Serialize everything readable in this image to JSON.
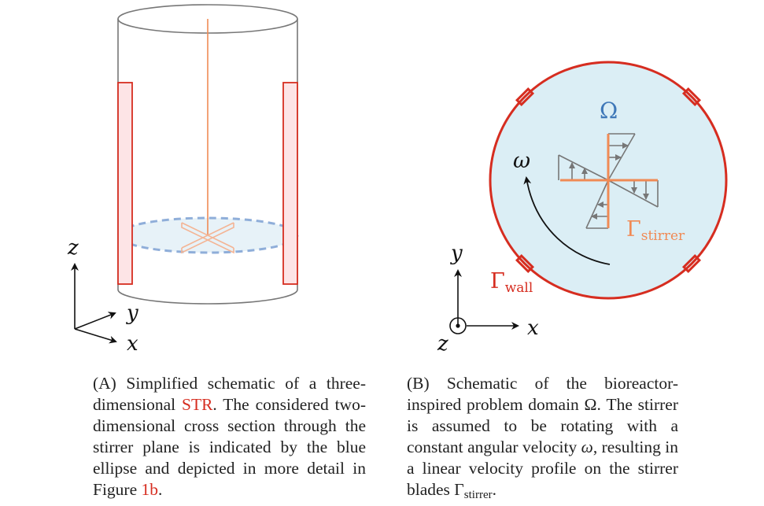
{
  "panel_a": {
    "axis_z": "z",
    "axis_y": "y",
    "axis_x": "x",
    "caption": {
      "label": "(A)",
      "t1": " Simplified schematic of a three-dimensional ",
      "str": "STR",
      "t2": ". The considered two-dimensional cross section through the stirrer plane is indicated by the blue ellipse and depicted in more detail in Figure ",
      "ref": "1b",
      "t3": "."
    }
  },
  "panel_b": {
    "omega_domain": "Ω",
    "omega_rot": "ω",
    "gamma_stirrer": "Γ",
    "gamma_stirrer_sub": "stirrer",
    "gamma_wall": "Γ",
    "gamma_wall_sub": "wall",
    "axis_y": "y",
    "axis_x": "x",
    "axis_z": "z",
    "caption": {
      "label": "(B)",
      "t1": " Schematic of the bioreactor-inspired problem domain Ω. The stirrer is assumed to be rotating with a constant angular velocity ",
      "omega": "ω",
      "t2": ", resulting in a linear velocity profile on the stirrer blades Γ",
      "sub": "stirrer",
      "t3": "."
    }
  },
  "colors": {
    "wall": "#d62d20",
    "baffle_fill": "#fde4e6",
    "stirrer": "#f08a55",
    "domain_fill": "#dbeef5",
    "ellipse": "#8aaad8",
    "velocity": "#777777",
    "omega_label": "#3f78b8"
  }
}
